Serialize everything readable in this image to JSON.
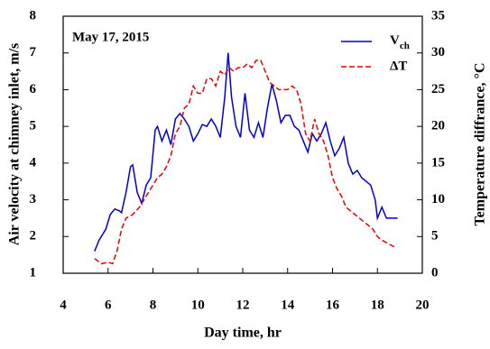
{
  "chart_data": {
    "type": "line",
    "annotation": "May 17, 2015",
    "xlabel": "Day time, hr",
    "ylabel": "Air velocity at chimney inlet, m/s",
    "y2label": "Temperature diffrance, °C",
    "xlim": [
      4,
      20
    ],
    "xticks": [
      4,
      6,
      8,
      10,
      12,
      14,
      16,
      18,
      20
    ],
    "ylim": [
      1,
      8
    ],
    "yticks": [
      1,
      2,
      3,
      4,
      5,
      6,
      7,
      8
    ],
    "y2lim": [
      0,
      35
    ],
    "y2ticks": [
      0,
      5,
      10,
      15,
      20,
      25,
      30,
      35
    ],
    "legend": "upper right",
    "series": [
      {
        "name": "Vch",
        "color": "#0000cc",
        "dash": false,
        "x": [
          5.4,
          5.6,
          5.9,
          6.1,
          6.3,
          6.5,
          6.6,
          6.8,
          7.0,
          7.1,
          7.3,
          7.5,
          7.7,
          7.9,
          8.1,
          8.2,
          8.4,
          8.6,
          8.8,
          9.0,
          9.2,
          9.4,
          9.6,
          9.8,
          10.0,
          10.2,
          10.4,
          10.6,
          10.8,
          11.0,
          11.2,
          11.35,
          11.5,
          11.7,
          11.9,
          12.1,
          12.3,
          12.5,
          12.7,
          12.9,
          13.1,
          13.3,
          13.5,
          13.7,
          13.9,
          14.1,
          14.3,
          14.5,
          14.7,
          14.9,
          15.1,
          15.3,
          15.5,
          15.7,
          15.9,
          16.1,
          16.3,
          16.5,
          16.7,
          16.9,
          17.1,
          17.3,
          17.5,
          17.7,
          17.9,
          18.0,
          18.2,
          18.4,
          18.6,
          18.9
        ],
        "values": [
          1.6,
          1.9,
          2.2,
          2.6,
          2.75,
          2.7,
          2.65,
          3.2,
          3.9,
          3.95,
          3.2,
          2.9,
          3.4,
          3.6,
          4.9,
          5.0,
          4.6,
          4.9,
          4.5,
          5.2,
          5.35,
          5.2,
          5.0,
          4.6,
          4.8,
          5.05,
          5.0,
          5.2,
          5.0,
          4.7,
          5.8,
          7.0,
          5.8,
          5.0,
          4.7,
          5.9,
          4.9,
          4.7,
          5.1,
          4.7,
          5.5,
          6.15,
          5.7,
          5.1,
          5.3,
          5.3,
          5.0,
          4.9,
          4.6,
          4.3,
          4.8,
          4.6,
          4.8,
          5.1,
          4.6,
          4.2,
          4.4,
          4.7,
          4.0,
          3.7,
          3.8,
          3.6,
          3.5,
          3.4,
          3.0,
          2.5,
          2.8,
          2.5,
          2.5,
          2.5
        ]
      },
      {
        "name": "ΔT",
        "color": "#ee0000",
        "dash": true,
        "axis": "y2",
        "x": [
          5.4,
          5.7,
          6.0,
          6.2,
          6.4,
          6.6,
          6.8,
          7.1,
          7.4,
          7.7,
          8.0,
          8.2,
          8.4,
          8.6,
          8.8,
          9.0,
          9.2,
          9.4,
          9.6,
          9.8,
          10.0,
          10.2,
          10.4,
          10.6,
          10.8,
          11.0,
          11.2,
          11.4,
          11.6,
          11.8,
          12.0,
          12.2,
          12.4,
          12.6,
          12.8,
          13.0,
          13.2,
          13.4,
          13.6,
          13.8,
          14.0,
          14.2,
          14.4,
          14.6,
          14.8,
          15.0,
          15.2,
          15.4,
          15.6,
          15.8,
          16.0,
          16.2,
          16.4,
          16.6,
          16.8,
          17.0,
          17.2,
          17.4,
          17.6,
          17.8,
          18.0,
          18.2,
          18.5,
          18.8
        ],
        "values": [
          2,
          1.3,
          1.5,
          1.3,
          3,
          6,
          7.5,
          8,
          9,
          10.5,
          12,
          13,
          13.5,
          14.5,
          16,
          19,
          20,
          22.5,
          23,
          25.5,
          24.5,
          24.5,
          26.5,
          26.5,
          25.5,
          27.5,
          27,
          28,
          27.5,
          28,
          28,
          28.5,
          28,
          29,
          29,
          27.5,
          26,
          25.5,
          25,
          25,
          25,
          25.5,
          25,
          23,
          19,
          18,
          21,
          19,
          18,
          16,
          13,
          11.5,
          10.5,
          9,
          8.5,
          8,
          7.5,
          7,
          6.5,
          6,
          5,
          4.5,
          4,
          3.5
        ]
      }
    ]
  }
}
